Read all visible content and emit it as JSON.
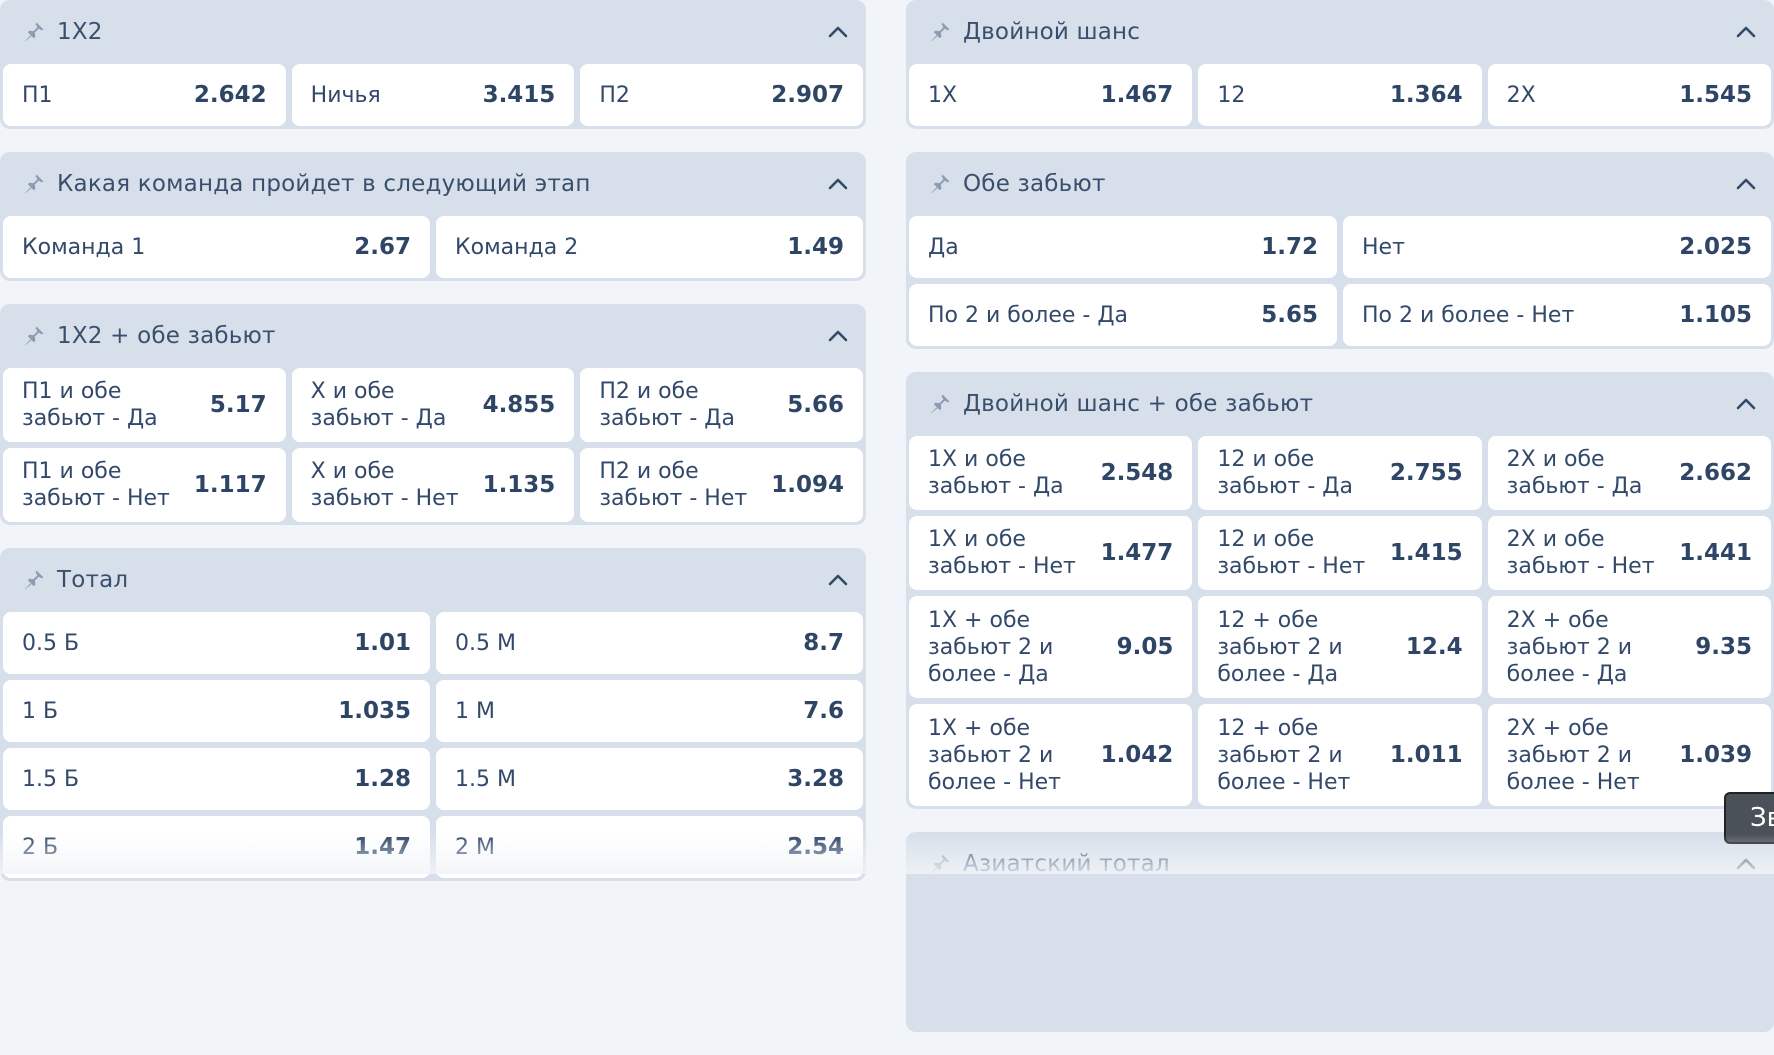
{
  "markets_left": [
    {
      "title": "1X2",
      "cols": 3,
      "rows": [
        [
          {
            "label": "П1",
            "odd": "2.642"
          },
          {
            "label": "Ничья",
            "odd": "3.415"
          },
          {
            "label": "П2",
            "odd": "2.907"
          }
        ]
      ]
    },
    {
      "title": "Какая команда пройдет в следующий этап",
      "cols": 2,
      "rows": [
        [
          {
            "label": "Команда 1",
            "odd": "2.67"
          },
          {
            "label": "Команда 2",
            "odd": "1.49"
          }
        ]
      ]
    },
    {
      "title": "1X2 + обе забьют",
      "cols": 3,
      "rows": [
        [
          {
            "label": "П1 и обе забьют - Да",
            "odd": "5.17"
          },
          {
            "label": "X и обе забьют - Да",
            "odd": "4.855"
          },
          {
            "label": "П2 и обе забьют - Да",
            "odd": "5.66"
          }
        ],
        [
          {
            "label": "П1 и обе забьют - Нет",
            "odd": "1.117"
          },
          {
            "label": "X и обе забьют - Нет",
            "odd": "1.135"
          },
          {
            "label": "П2 и обе забьют - Нет",
            "odd": "1.094"
          }
        ]
      ]
    },
    {
      "title": "Тотал",
      "cols": 2,
      "rows": [
        [
          {
            "label": "0.5 Б",
            "odd": "1.01"
          },
          {
            "label": "0.5 М",
            "odd": "8.7"
          }
        ],
        [
          {
            "label": "1 Б",
            "odd": "1.035"
          },
          {
            "label": "1 М",
            "odd": "7.6"
          }
        ],
        [
          {
            "label": "1.5 Б",
            "odd": "1.28"
          },
          {
            "label": "1.5 М",
            "odd": "3.28"
          }
        ],
        [
          {
            "label": "2 Б",
            "odd": "1.47"
          },
          {
            "label": "2 М",
            "odd": "2.54"
          }
        ]
      ]
    }
  ],
  "markets_right": [
    {
      "title": "Двойной шанс",
      "cols": 3,
      "rows": [
        [
          {
            "label": "1X",
            "odd": "1.467"
          },
          {
            "label": "12",
            "odd": "1.364"
          },
          {
            "label": "2X",
            "odd": "1.545"
          }
        ]
      ]
    },
    {
      "title": "Обе забьют",
      "cols": 2,
      "rows": [
        [
          {
            "label": "Да",
            "odd": "1.72"
          },
          {
            "label": "Нет",
            "odd": "2.025"
          }
        ],
        [
          {
            "label": "По 2 и более - Да",
            "odd": "5.65"
          },
          {
            "label": "По 2 и более - Нет",
            "odd": "1.105"
          }
        ]
      ]
    },
    {
      "title": "Двойной шанс + обе забьют",
      "cols": 3,
      "rows": [
        [
          {
            "label": "1X и обе забьют - Да",
            "odd": "2.548"
          },
          {
            "label": "12 и обе забьют - Да",
            "odd": "2.755"
          },
          {
            "label": "2X и обе забьют - Да",
            "odd": "2.662"
          }
        ],
        [
          {
            "label": "1X и обе забьют - Нет",
            "odd": "1.477"
          },
          {
            "label": "12 и обе забьют - Нет",
            "odd": "1.415"
          },
          {
            "label": "2X и обе забьют - Нет",
            "odd": "1.441"
          }
        ],
        [
          {
            "label": "1X + обе забьют 2 и более - Да",
            "odd": "9.05"
          },
          {
            "label": "12 + обе забьют 2 и более - Да",
            "odd": "12.4"
          },
          {
            "label": "2X + обе забьют 2 и более - Да",
            "odd": "9.35"
          }
        ],
        [
          {
            "label": "1X + обе забьют 2 и более - Нет",
            "odd": "1.042"
          },
          {
            "label": "12 + обе забьют 2 и более - Нет",
            "odd": "1.011"
          },
          {
            "label": "2X + обе забьют 2 и более - Нет",
            "odd": "1.039"
          }
        ]
      ]
    },
    {
      "title": "Азиатский тотал",
      "cols": 2,
      "rows": []
    }
  ],
  "icons": {
    "pin": "pin-icon",
    "collapse": "chevron-up-icon"
  },
  "tooltip": {
    "text": "Зв"
  },
  "colors": {
    "panel": "#d7e0ea",
    "cell": "#ffffff",
    "text": "#2f4566",
    "background": "#f1f4f8"
  }
}
